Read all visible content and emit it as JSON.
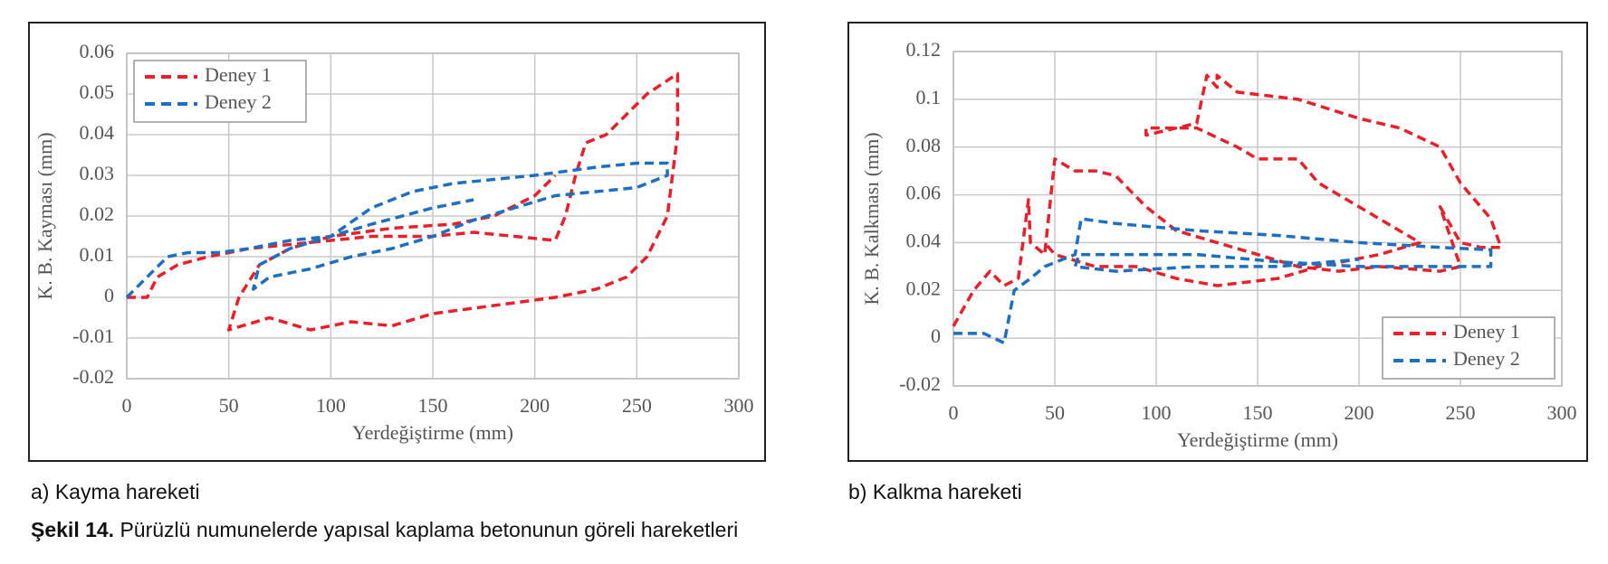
{
  "chart_data": [
    {
      "type": "line",
      "x_label": "Yerdeğiştirme (mm)",
      "y_label": "K. B. Kayması (mm)",
      "xlim": [
        0,
        300
      ],
      "xticks": [
        0,
        50,
        100,
        150,
        200,
        250,
        300
      ],
      "ylim": [
        -0.02,
        0.06
      ],
      "yticks": [
        -0.02,
        -0.01,
        0,
        0.01,
        0.02,
        0.03,
        0.04,
        0.05,
        0.06
      ],
      "grid": true,
      "legend": "upper left",
      "series": [
        {
          "name": "Deney 1",
          "color": "#e8202a",
          "x": [
            0,
            5,
            10,
            15,
            25,
            40,
            60,
            80,
            100,
            120,
            150,
            170,
            190,
            210,
            215,
            220,
            225,
            235,
            245,
            255,
            270,
            270,
            265,
            255,
            245,
            230,
            210,
            180,
            150,
            130,
            110,
            90,
            70,
            50,
            55,
            65,
            80,
            100,
            130,
            160,
            180,
            200,
            210
          ],
          "values": [
            0,
            0,
            0,
            0.005,
            0.008,
            0.01,
            0.012,
            0.013,
            0.014,
            0.015,
            0.015,
            0.016,
            0.015,
            0.014,
            0.02,
            0.03,
            0.038,
            0.04,
            0.045,
            0.05,
            0.055,
            0.04,
            0.02,
            0.01,
            0.005,
            0.002,
            0,
            -0.002,
            -0.004,
            -0.007,
            -0.006,
            -0.008,
            -0.005,
            -0.008,
            0,
            0.008,
            0.012,
            0.015,
            0.017,
            0.018,
            0.02,
            0.025,
            0.03
          ]
        },
        {
          "name": "Deney 2",
          "color": "#1f6fc0",
          "x": [
            0,
            10,
            20,
            30,
            45,
            60,
            80,
            100,
            120,
            140,
            160,
            180,
            200,
            230,
            250,
            265,
            265,
            250,
            230,
            210,
            190,
            170,
            150,
            130,
            110,
            90,
            70,
            62,
            65,
            80,
            100,
            120,
            150,
            170
          ],
          "values": [
            0,
            0.005,
            0.01,
            0.011,
            0.011,
            0.012,
            0.014,
            0.015,
            0.022,
            0.026,
            0.028,
            0.029,
            0.03,
            0.032,
            0.033,
            0.033,
            0.03,
            0.027,
            0.026,
            0.025,
            0.022,
            0.019,
            0.015,
            0.012,
            0.01,
            0.007,
            0.005,
            0.002,
            0.008,
            0.012,
            0.015,
            0.018,
            0.022,
            0.024
          ]
        }
      ]
    },
    {
      "type": "line",
      "x_label": "Yerdeğiştirme (mm)",
      "y_label": "K. B. Kalkması (mm)",
      "xlim": [
        0,
        300
      ],
      "xticks": [
        0,
        50,
        100,
        150,
        200,
        250,
        300
      ],
      "ylim": [
        -0.02,
        0.12
      ],
      "yticks": [
        -0.02,
        0,
        0.02,
        0.04,
        0.06,
        0.08,
        0.1,
        0.12
      ],
      "grid": true,
      "legend": "lower right",
      "series": [
        {
          "name": "Deney 1",
          "color": "#e8202a",
          "x": [
            0,
            10,
            18,
            25,
            32,
            37,
            38,
            45,
            50,
            60,
            70,
            80,
            95,
            110,
            130,
            150,
            170,
            190,
            210,
            240,
            250,
            240,
            250,
            260,
            270,
            265,
            250,
            240,
            220,
            200,
            170,
            140,
            130,
            130,
            125,
            120,
            95,
            95,
            120,
            140,
            150,
            170,
            180,
            200,
            220,
            230,
            210,
            180,
            160,
            130,
            110,
            90,
            70,
            50,
            45
          ],
          "values": [
            0.005,
            0.02,
            0.028,
            0.022,
            0.025,
            0.058,
            0.04,
            0.035,
            0.075,
            0.07,
            0.07,
            0.068,
            0.055,
            0.045,
            0.04,
            0.035,
            0.03,
            0.028,
            0.03,
            0.028,
            0.03,
            0.055,
            0.04,
            0.038,
            0.038,
            0.05,
            0.065,
            0.08,
            0.088,
            0.092,
            0.1,
            0.103,
            0.11,
            0.105,
            0.11,
            0.09,
            0.085,
            0.088,
            0.088,
            0.08,
            0.075,
            0.075,
            0.065,
            0.055,
            0.045,
            0.04,
            0.035,
            0.03,
            0.025,
            0.022,
            0.025,
            0.03,
            0.03,
            0.035,
            0.04
          ]
        },
        {
          "name": "Deney 2",
          "color": "#1f6fc0",
          "x": [
            0,
            15,
            25,
            30,
            38,
            45,
            60,
            63,
            80,
            120,
            160,
            200,
            240,
            265,
            265,
            240,
            200,
            160,
            120,
            80,
            62,
            60,
            80,
            120,
            160,
            200
          ],
          "values": [
            0.002,
            0.002,
            -0.002,
            0.02,
            0.025,
            0.03,
            0.035,
            0.05,
            0.048,
            0.045,
            0.043,
            0.04,
            0.038,
            0.037,
            0.03,
            0.03,
            0.03,
            0.032,
            0.035,
            0.035,
            0.035,
            0.03,
            0.028,
            0.03,
            0.03,
            0.033
          ]
        }
      ]
    }
  ],
  "captions": {
    "a": "a) Kayma hareketi",
    "b": "b) Kalkma hareketi",
    "label": "Şekil 14.",
    "text": "Pürüzlü numunelerde yapısal kaplama betonunun göreli hareketleri"
  }
}
